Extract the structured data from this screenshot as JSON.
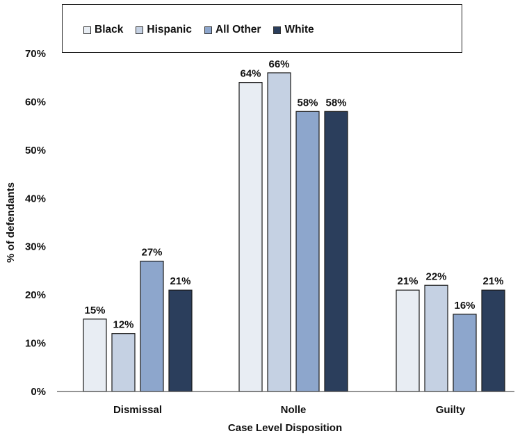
{
  "chart_data": {
    "type": "bar",
    "categories": [
      "Dismissal",
      "Nolle",
      "Guilty"
    ],
    "series": [
      {
        "name": "Black",
        "color": "#e8edf3",
        "values": [
          15,
          64,
          21
        ]
      },
      {
        "name": "Hispanic",
        "color": "#c5d1e3",
        "values": [
          12,
          66,
          22
        ]
      },
      {
        "name": "All Other",
        "color": "#8da6cc",
        "values": [
          27,
          58,
          16
        ]
      },
      {
        "name": "White",
        "color": "#2b3e5c",
        "values": [
          21,
          58,
          21
        ]
      }
    ],
    "data_labels": [
      [
        "15%",
        "64%",
        "21%"
      ],
      [
        "12%",
        "66%",
        "22%"
      ],
      [
        "27%",
        "58%",
        "16%"
      ],
      [
        "21%",
        "58%",
        "21%"
      ]
    ],
    "xlabel": "Case Level Disposition",
    "ylabel": "% of defendants",
    "ylim": [
      0,
      70
    ],
    "yticks": [
      0,
      10,
      20,
      30,
      40,
      50,
      60,
      70
    ],
    "ytick_labels": [
      "0%",
      "10%",
      "20%",
      "30%",
      "40%",
      "50%",
      "60%",
      "70%"
    ],
    "grid": false,
    "legend_position": "top"
  }
}
